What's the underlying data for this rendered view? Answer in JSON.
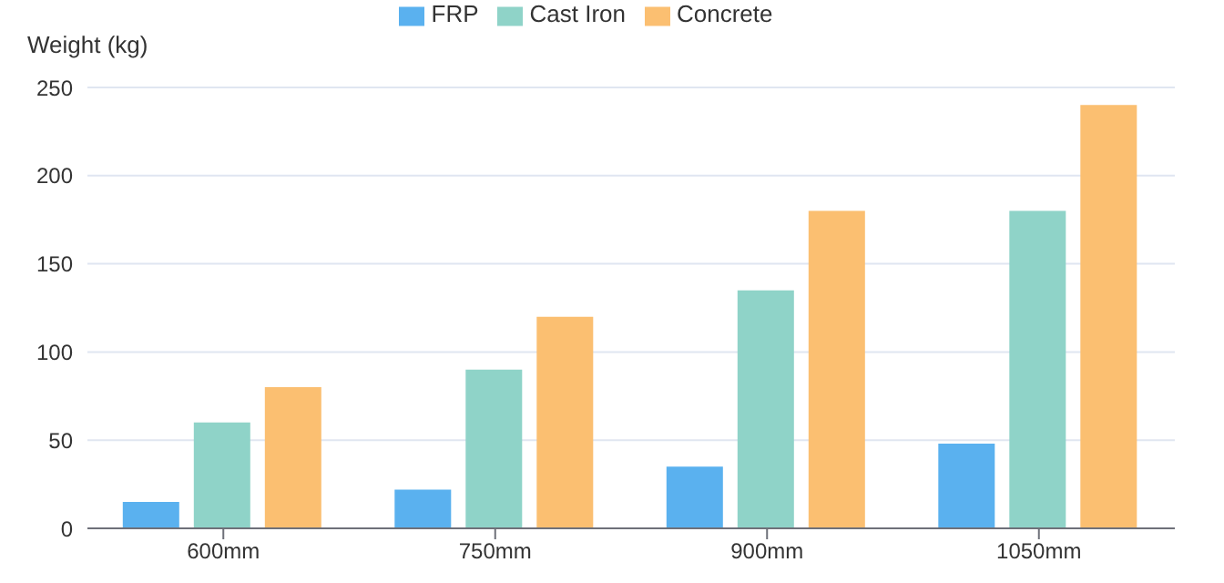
{
  "chart_data": {
    "type": "bar",
    "ylabel": "Weight (kg)",
    "categories": [
      "600mm",
      "750mm",
      "900mm",
      "1050mm"
    ],
    "series": [
      {
        "name": "FRP",
        "color": "#5ab1ef",
        "values": [
          15,
          22,
          35,
          48
        ]
      },
      {
        "name": "Cast Iron",
        "color": "#8fd3c8",
        "values": [
          60,
          90,
          135,
          180
        ]
      },
      {
        "name": "Concrete",
        "color": "#fbbf71",
        "values": [
          80,
          120,
          180,
          240
        ]
      }
    ],
    "ylim": [
      0,
      250
    ],
    "yticks": [
      0,
      50,
      100,
      150,
      200,
      250
    ],
    "grid": "y",
    "legend": "top"
  }
}
